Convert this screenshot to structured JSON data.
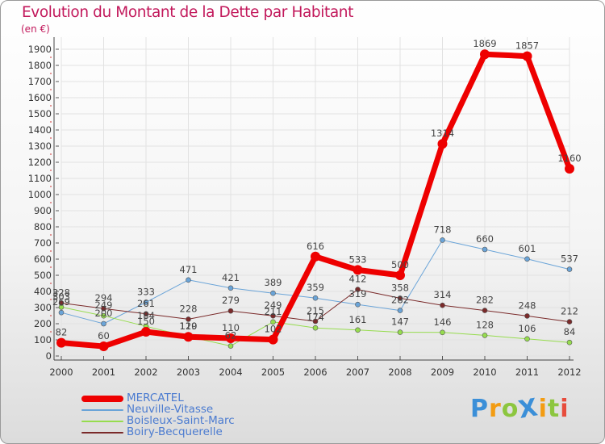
{
  "title": "Evolution du Montant de la Dette par Habitant",
  "unit": "(en €)",
  "brand": {
    "text": "ProXiti",
    "letters": [
      "P",
      "r",
      "o",
      "X",
      "i",
      "t",
      "i"
    ],
    "colors": [
      "#3b8fd8",
      "#f39c12",
      "#8cc63f",
      "#3b8fd8",
      "#f39c12",
      "#8cc63f",
      "#e74c3c"
    ]
  },
  "chart_data": {
    "type": "line",
    "x": [
      "2000",
      "2001",
      "2002",
      "2003",
      "2004",
      "2005",
      "2006",
      "2007",
      "2008",
      "2009",
      "2010",
      "2011",
      "2012"
    ],
    "y_ticks": [
      "0",
      "100",
      "200",
      "300",
      "400",
      "500",
      "600",
      "700",
      "800",
      "900",
      "1000",
      "1100",
      "1200",
      "1300",
      "1400",
      "1500",
      "1600",
      "1700",
      "1800",
      "1900"
    ],
    "ylim": [
      0,
      1950
    ],
    "grid": true,
    "legend_position": "bottom-left",
    "series": [
      {
        "name": "MERCATEL",
        "color": "#ee0000",
        "width": 7,
        "values": [
          82,
          60,
          150,
          119,
          110,
          102,
          616,
          533,
          500,
          1314,
          1869,
          1857,
          1160
        ]
      },
      {
        "name": "Neuville-Vitasse",
        "color": "#6aa4d8",
        "width": 1,
        "values": [
          269,
          200,
          333,
          471,
          421,
          389,
          359,
          319,
          282,
          718,
          660,
          601,
          537
        ]
      },
      {
        "name": "Boisleux-Saint-Marc",
        "color": "#96dc4e",
        "width": 1,
        "values": [
          303,
          249,
          184,
          120,
          62,
          211,
          174,
          161,
          147,
          146,
          128,
          106,
          84
        ]
      },
      {
        "name": "Boiry-Becquerelle",
        "color": "#7a2a2a",
        "width": 1,
        "values": [
          328,
          294,
          261,
          228,
          279,
          249,
          215,
          412,
          358,
          314,
          282,
          248,
          212
        ]
      }
    ],
    "data_labels": [
      [
        "82",
        "60",
        "150",
        "119",
        "110",
        "102",
        "616",
        "533",
        "500",
        "1314",
        "1869",
        "1857",
        "1160"
      ],
      [
        "269",
        "200",
        "333",
        "471",
        "421",
        "389",
        "359",
        "319",
        "282",
        "718",
        "660",
        "601",
        "537"
      ],
      [
        "303",
        "249",
        "184",
        "120",
        "62",
        "211",
        "174",
        "161",
        "147",
        "146",
        "128",
        "106",
        "84"
      ],
      [
        "328",
        "294",
        "261",
        "228",
        "279",
        "249",
        "215",
        "412",
        "358",
        "314",
        "282",
        "248",
        "212"
      ]
    ]
  }
}
